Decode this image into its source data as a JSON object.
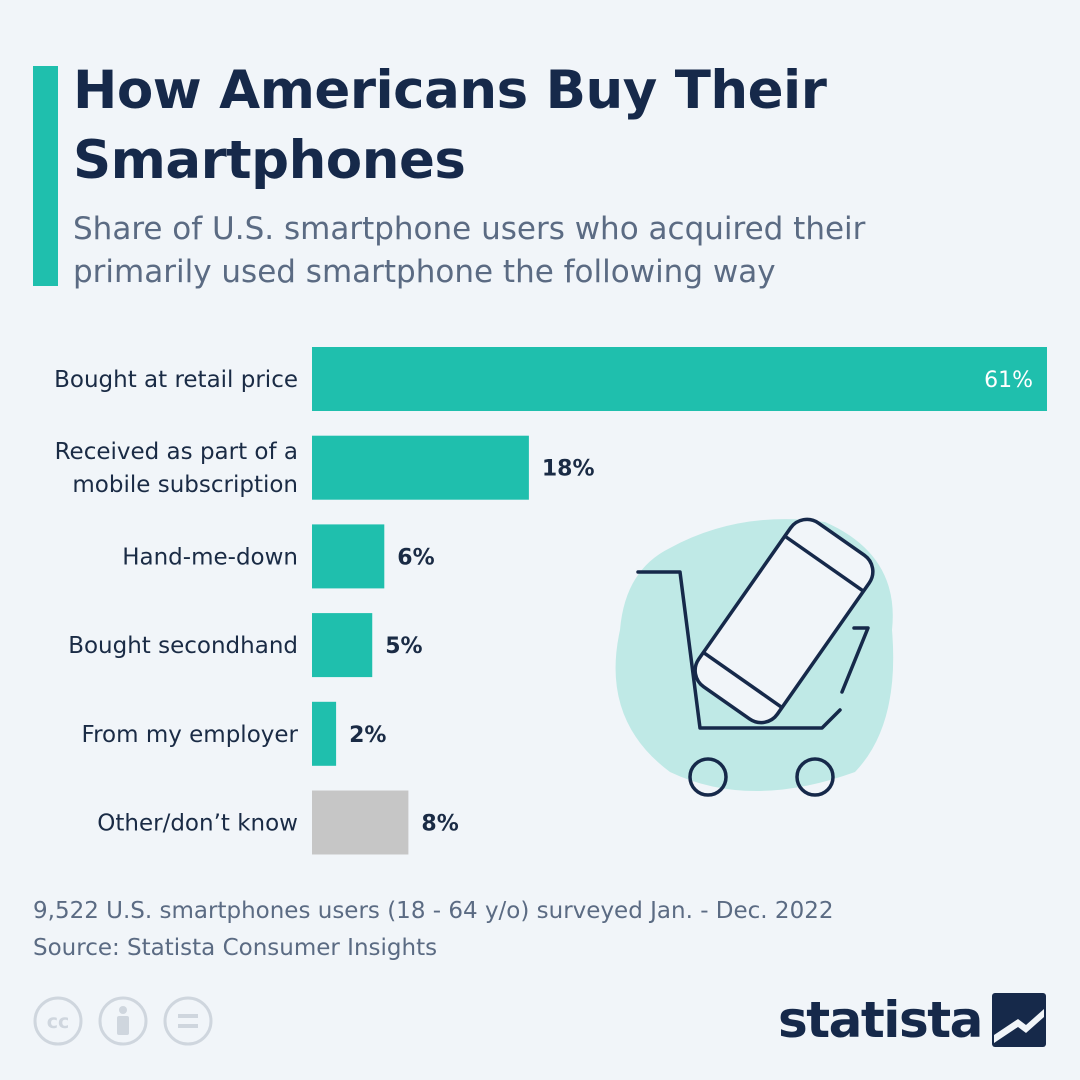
{
  "header": {
    "title": "How Americans Buy Their Smartphones",
    "subtitle": "Share of U.S. smartphone users who acquired their primarily used smartphone the following way"
  },
  "colors": {
    "accent": "#1fbfad",
    "other": "#c6c6c6",
    "title": "#16294a",
    "text": "#1a2b45",
    "muted": "#5b6b83",
    "background": "#f1f5f9",
    "illustration_bg": "#bfe9e6"
  },
  "chart_data": {
    "type": "bar",
    "orientation": "horizontal",
    "title": "How Americans Buy Their Smartphones",
    "xlabel": "",
    "ylabel": "",
    "xlim": [
      0,
      61
    ],
    "grid": false,
    "unit": "%",
    "categories": [
      {
        "label": "Bought at retail price",
        "lines": [
          "Bought at retail price"
        ],
        "value": 61,
        "display": "61%",
        "color": "#1fbfad"
      },
      {
        "label": "Received as part of a mobile subscription",
        "lines": [
          "Received as part of a",
          "mobile subscription"
        ],
        "value": 18,
        "display": "18%",
        "color": "#1fbfad"
      },
      {
        "label": "Hand-me-down",
        "lines": [
          "Hand-me-down"
        ],
        "value": 6,
        "display": "6%",
        "color": "#1fbfad"
      },
      {
        "label": "Bought secondhand",
        "lines": [
          "Bought secondhand"
        ],
        "value": 5,
        "display": "5%",
        "color": "#1fbfad"
      },
      {
        "label": "From my employer",
        "lines": [
          "From my employer"
        ],
        "value": 2,
        "display": "2%",
        "color": "#1fbfad"
      },
      {
        "label": "Other/don’t know",
        "lines": [
          "Other/don’t know"
        ],
        "value": 8,
        "display": "8%",
        "color": "#c6c6c6"
      }
    ]
  },
  "illustration": {
    "icon": "shopping-cart-smartphone-icon"
  },
  "footer": {
    "survey_note": "9,522 U.S. smartphones users (18 - 64 y/o) surveyed Jan. - Dec. 2022",
    "source": "Source: Statista Consumer Insights",
    "license_icons": [
      "cc-icon",
      "attribution-icon",
      "no-derivatives-icon"
    ],
    "brand": "statista"
  }
}
